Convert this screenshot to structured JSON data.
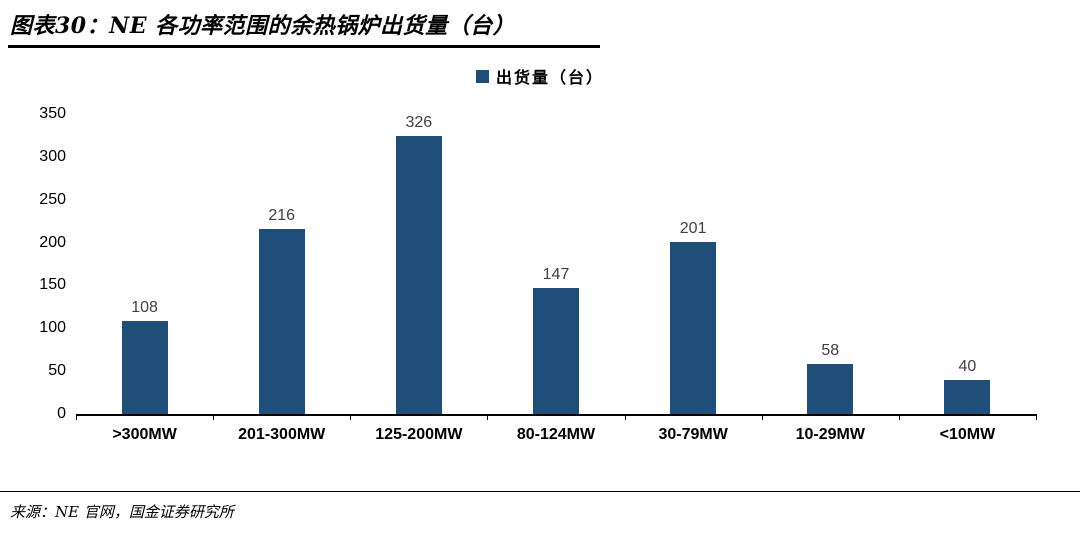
{
  "header": {
    "title": "图表30：NE 各功率范围的余热锅炉出货量（台）"
  },
  "legend": {
    "label": "出货量（台）"
  },
  "chart_data": {
    "type": "bar",
    "title": "NE 各功率范围的余热锅炉出货量（台）",
    "categories": [
      ">300MW",
      "201-300MW",
      "125-200MW",
      "80-124MW",
      "30-79MW",
      "10-29MW",
      "<10MW"
    ],
    "values": [
      108,
      216,
      326,
      147,
      201,
      58,
      40
    ],
    "series_name": "出货量（台）",
    "xlabel": "",
    "ylabel": "",
    "ylim": [
      0,
      350
    ],
    "yticks": [
      0,
      50,
      100,
      150,
      200,
      250,
      300,
      350
    ],
    "bar_color": "#1F4E79",
    "grid": false,
    "legend_position": "top-center"
  },
  "footer": {
    "source": "来源：NE 官网，国金证券研究所"
  }
}
